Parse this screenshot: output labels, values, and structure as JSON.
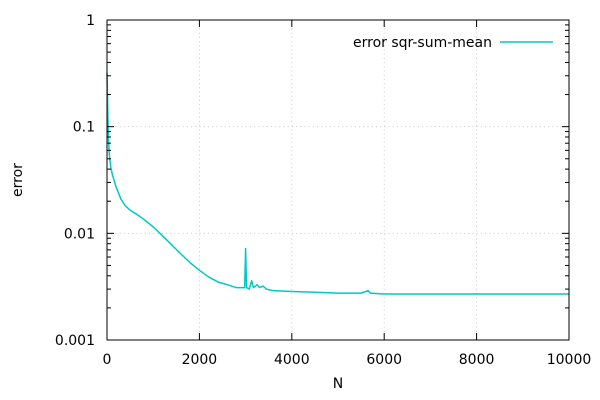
{
  "chart_data": {
    "type": "line",
    "xlabel": "N",
    "ylabel": "error",
    "xlim": [
      0,
      10000
    ],
    "ylim": [
      0.001,
      1
    ],
    "yscale": "log",
    "grid": true,
    "legend_position": "top-right",
    "xticks": [
      "0",
      "2000",
      "4000",
      "6000",
      "8000",
      "10000"
    ],
    "yticks": [
      "0.001",
      "0.01",
      "0.1",
      "1"
    ],
    "series": [
      {
        "name": "error sqr-sum-mean",
        "color": "#00c8c8",
        "points": [
          [
            0,
            0.32
          ],
          [
            10,
            0.2
          ],
          [
            20,
            0.12
          ],
          [
            30,
            0.08
          ],
          [
            50,
            0.055
          ],
          [
            80,
            0.042
          ],
          [
            120,
            0.035
          ],
          [
            200,
            0.027
          ],
          [
            300,
            0.021
          ],
          [
            400,
            0.018
          ],
          [
            500,
            0.0165
          ],
          [
            600,
            0.0155
          ],
          [
            700,
            0.0145
          ],
          [
            800,
            0.0135
          ],
          [
            1000,
            0.0115
          ],
          [
            1200,
            0.0095
          ],
          [
            1400,
            0.0078
          ],
          [
            1600,
            0.0064
          ],
          [
            1800,
            0.0053
          ],
          [
            2000,
            0.0045
          ],
          [
            2200,
            0.0039
          ],
          [
            2400,
            0.0035
          ],
          [
            2600,
            0.0033
          ],
          [
            2800,
            0.0031
          ],
          [
            2980,
            0.0031
          ],
          [
            3000,
            0.0072
          ],
          [
            3020,
            0.0031
          ],
          [
            3080,
            0.003
          ],
          [
            3130,
            0.0036
          ],
          [
            3170,
            0.0031
          ],
          [
            3250,
            0.0033
          ],
          [
            3300,
            0.0031
          ],
          [
            3380,
            0.0032
          ],
          [
            3450,
            0.003
          ],
          [
            3600,
            0.0029
          ],
          [
            4000,
            0.00285
          ],
          [
            4500,
            0.0028
          ],
          [
            5000,
            0.00275
          ],
          [
            5500,
            0.00275
          ],
          [
            5650,
            0.0029
          ],
          [
            5700,
            0.00275
          ],
          [
            6000,
            0.0027
          ],
          [
            7000,
            0.0027
          ],
          [
            8000,
            0.0027
          ],
          [
            9000,
            0.0027
          ],
          [
            10000,
            0.0027
          ]
        ]
      }
    ]
  }
}
